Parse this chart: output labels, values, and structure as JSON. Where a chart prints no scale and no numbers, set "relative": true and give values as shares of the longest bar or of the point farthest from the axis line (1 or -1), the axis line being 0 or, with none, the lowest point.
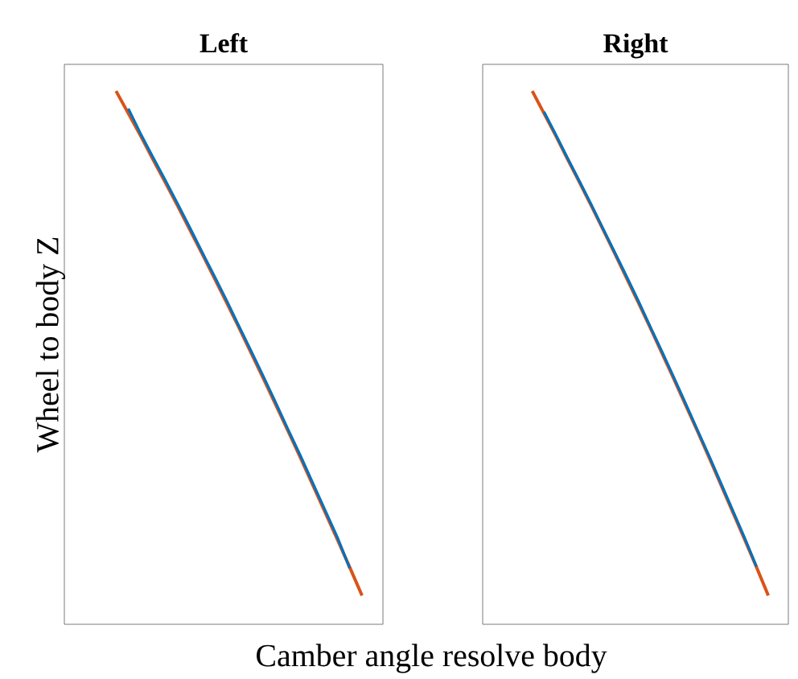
{
  "chart_data": [
    {
      "type": "line",
      "title": "Left",
      "xlabel": "Camber angle resolve body",
      "ylabel": "Wheel to body Z",
      "relative": true,
      "categories": [
        null,
        null,
        null,
        null,
        null,
        null,
        null,
        null,
        null,
        null,
        null,
        null,
        null,
        null,
        null,
        null,
        null,
        null,
        null,
        null,
        null
      ],
      "series": [
        {
          "color": "#0072bd",
          "values": [
            null,
            0.967,
            0.92,
            0.876,
            0.833,
            0.789,
            0.744,
            0.698,
            0.653,
            0.607,
            0.559,
            0.512,
            0.464,
            0.415,
            0.365,
            0.316,
            0.265,
            0.214,
            0.163,
            0.105,
            null
          ]
        },
        {
          "color": "#d95319",
          "values": [
            1,
            0.958,
            0.916,
            0.872,
            0.829,
            0.785,
            0.74,
            0.695,
            0.649,
            0.603,
            0.556,
            0.508,
            0.46,
            0.411,
            0.362,
            0.312,
            0.261,
            0.21,
            0.159,
            0.107,
            0.054
          ]
        }
      ]
    },
    {
      "type": "line",
      "title": "Right",
      "relative": true,
      "categories": [
        null,
        null,
        null,
        null,
        null,
        null,
        null,
        null,
        null,
        null,
        null,
        null,
        null,
        null,
        null,
        null,
        null,
        null,
        null,
        null,
        null
      ],
      "series": [
        {
          "color": "#0072bd",
          "values": [
            null,
            0.961,
            0.918,
            0.874,
            0.831,
            0.787,
            0.742,
            0.697,
            0.652,
            0.606,
            0.558,
            0.511,
            0.463,
            0.414,
            0.364,
            0.315,
            0.264,
            0.213,
            0.162,
            0.108,
            null
          ]
        },
        {
          "color": "#d95319",
          "values": [
            1,
            0.958,
            0.916,
            0.872,
            0.829,
            0.785,
            0.74,
            0.695,
            0.649,
            0.603,
            0.556,
            0.508,
            0.46,
            0.411,
            0.362,
            0.312,
            0.261,
            0.21,
            0.159,
            0.107,
            0.054
          ]
        }
      ]
    }
  ]
}
